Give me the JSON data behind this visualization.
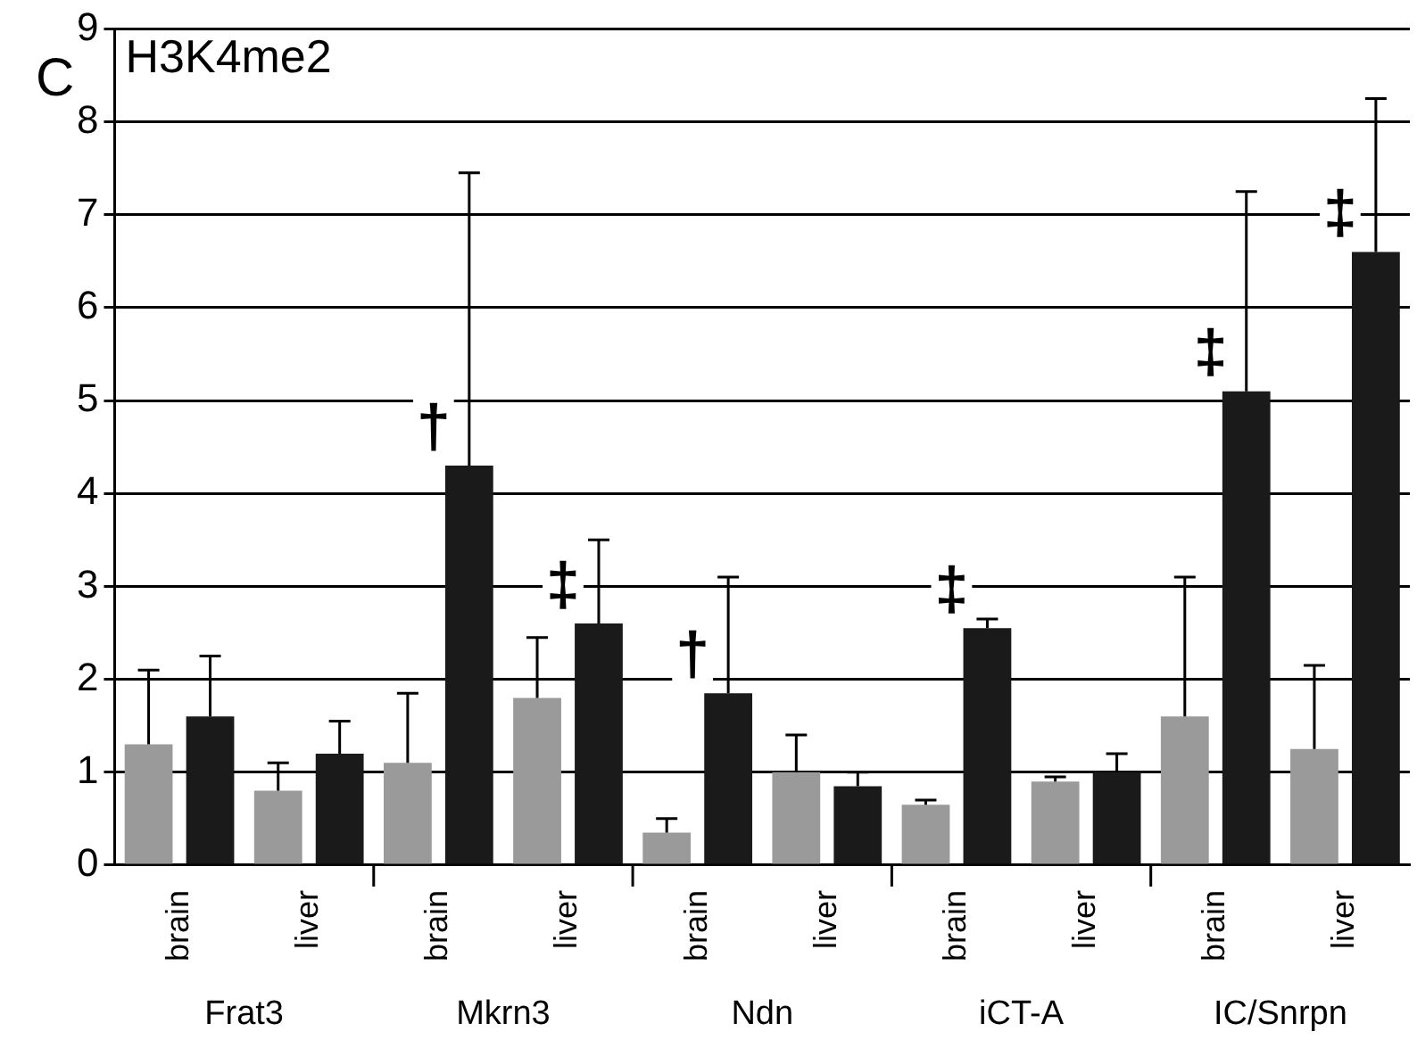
{
  "chart_data": {
    "type": "bar",
    "title": "H3K4me2",
    "categories": [
      "brain",
      "liver",
      "brain",
      "liver",
      "brain",
      "liver",
      "brain",
      "liver",
      "brain",
      "liver"
    ],
    "series": [
      {
        "color": "#9a9a9a",
        "values": [
          1.3,
          0.8,
          1.1,
          1.8,
          0.35,
          1.0,
          0.65,
          0.9,
          1.6,
          1.25
        ],
        "errors": [
          [
            1.3,
            2.1
          ],
          [
            0.8,
            1.1
          ],
          [
            1.1,
            1.85
          ],
          [
            1.8,
            2.45
          ],
          [
            0.35,
            0.5
          ],
          [
            1.0,
            1.4
          ],
          [
            0.65,
            0.7
          ],
          [
            0.9,
            0.95
          ],
          [
            1.6,
            3.1
          ],
          [
            1.25,
            2.15
          ]
        ]
      },
      {
        "color": "#1a1a1a",
        "values": [
          1.6,
          1.2,
          4.3,
          2.6,
          1.85,
          0.85,
          2.55,
          1.0,
          5.1,
          6.6
        ],
        "errors": [
          [
            1.6,
            2.25
          ],
          [
            1.2,
            1.55
          ],
          [
            4.3,
            7.45
          ],
          [
            2.6,
            3.5
          ],
          [
            1.85,
            3.1
          ],
          [
            0.85,
            1.0
          ],
          [
            2.55,
            2.65
          ],
          [
            1.0,
            1.2
          ],
          [
            5.1,
            7.25
          ],
          [
            6.6,
            8.25
          ]
        ],
        "value_labels": [
          null,
          null,
          "†",
          "‡",
          "†",
          null,
          "‡",
          null,
          "‡",
          "‡"
        ]
      }
    ],
    "ylim": [
      0,
      9
    ],
    "yticks": [
      0,
      1,
      2,
      3,
      4,
      5,
      6,
      7,
      8,
      9
    ],
    "grid": "y",
    "legend": false,
    "annotations": [
      "C",
      "Frat3",
      "Mkrn3",
      "Ndn",
      "iCT-A",
      "IC/Snrpn"
    ]
  }
}
